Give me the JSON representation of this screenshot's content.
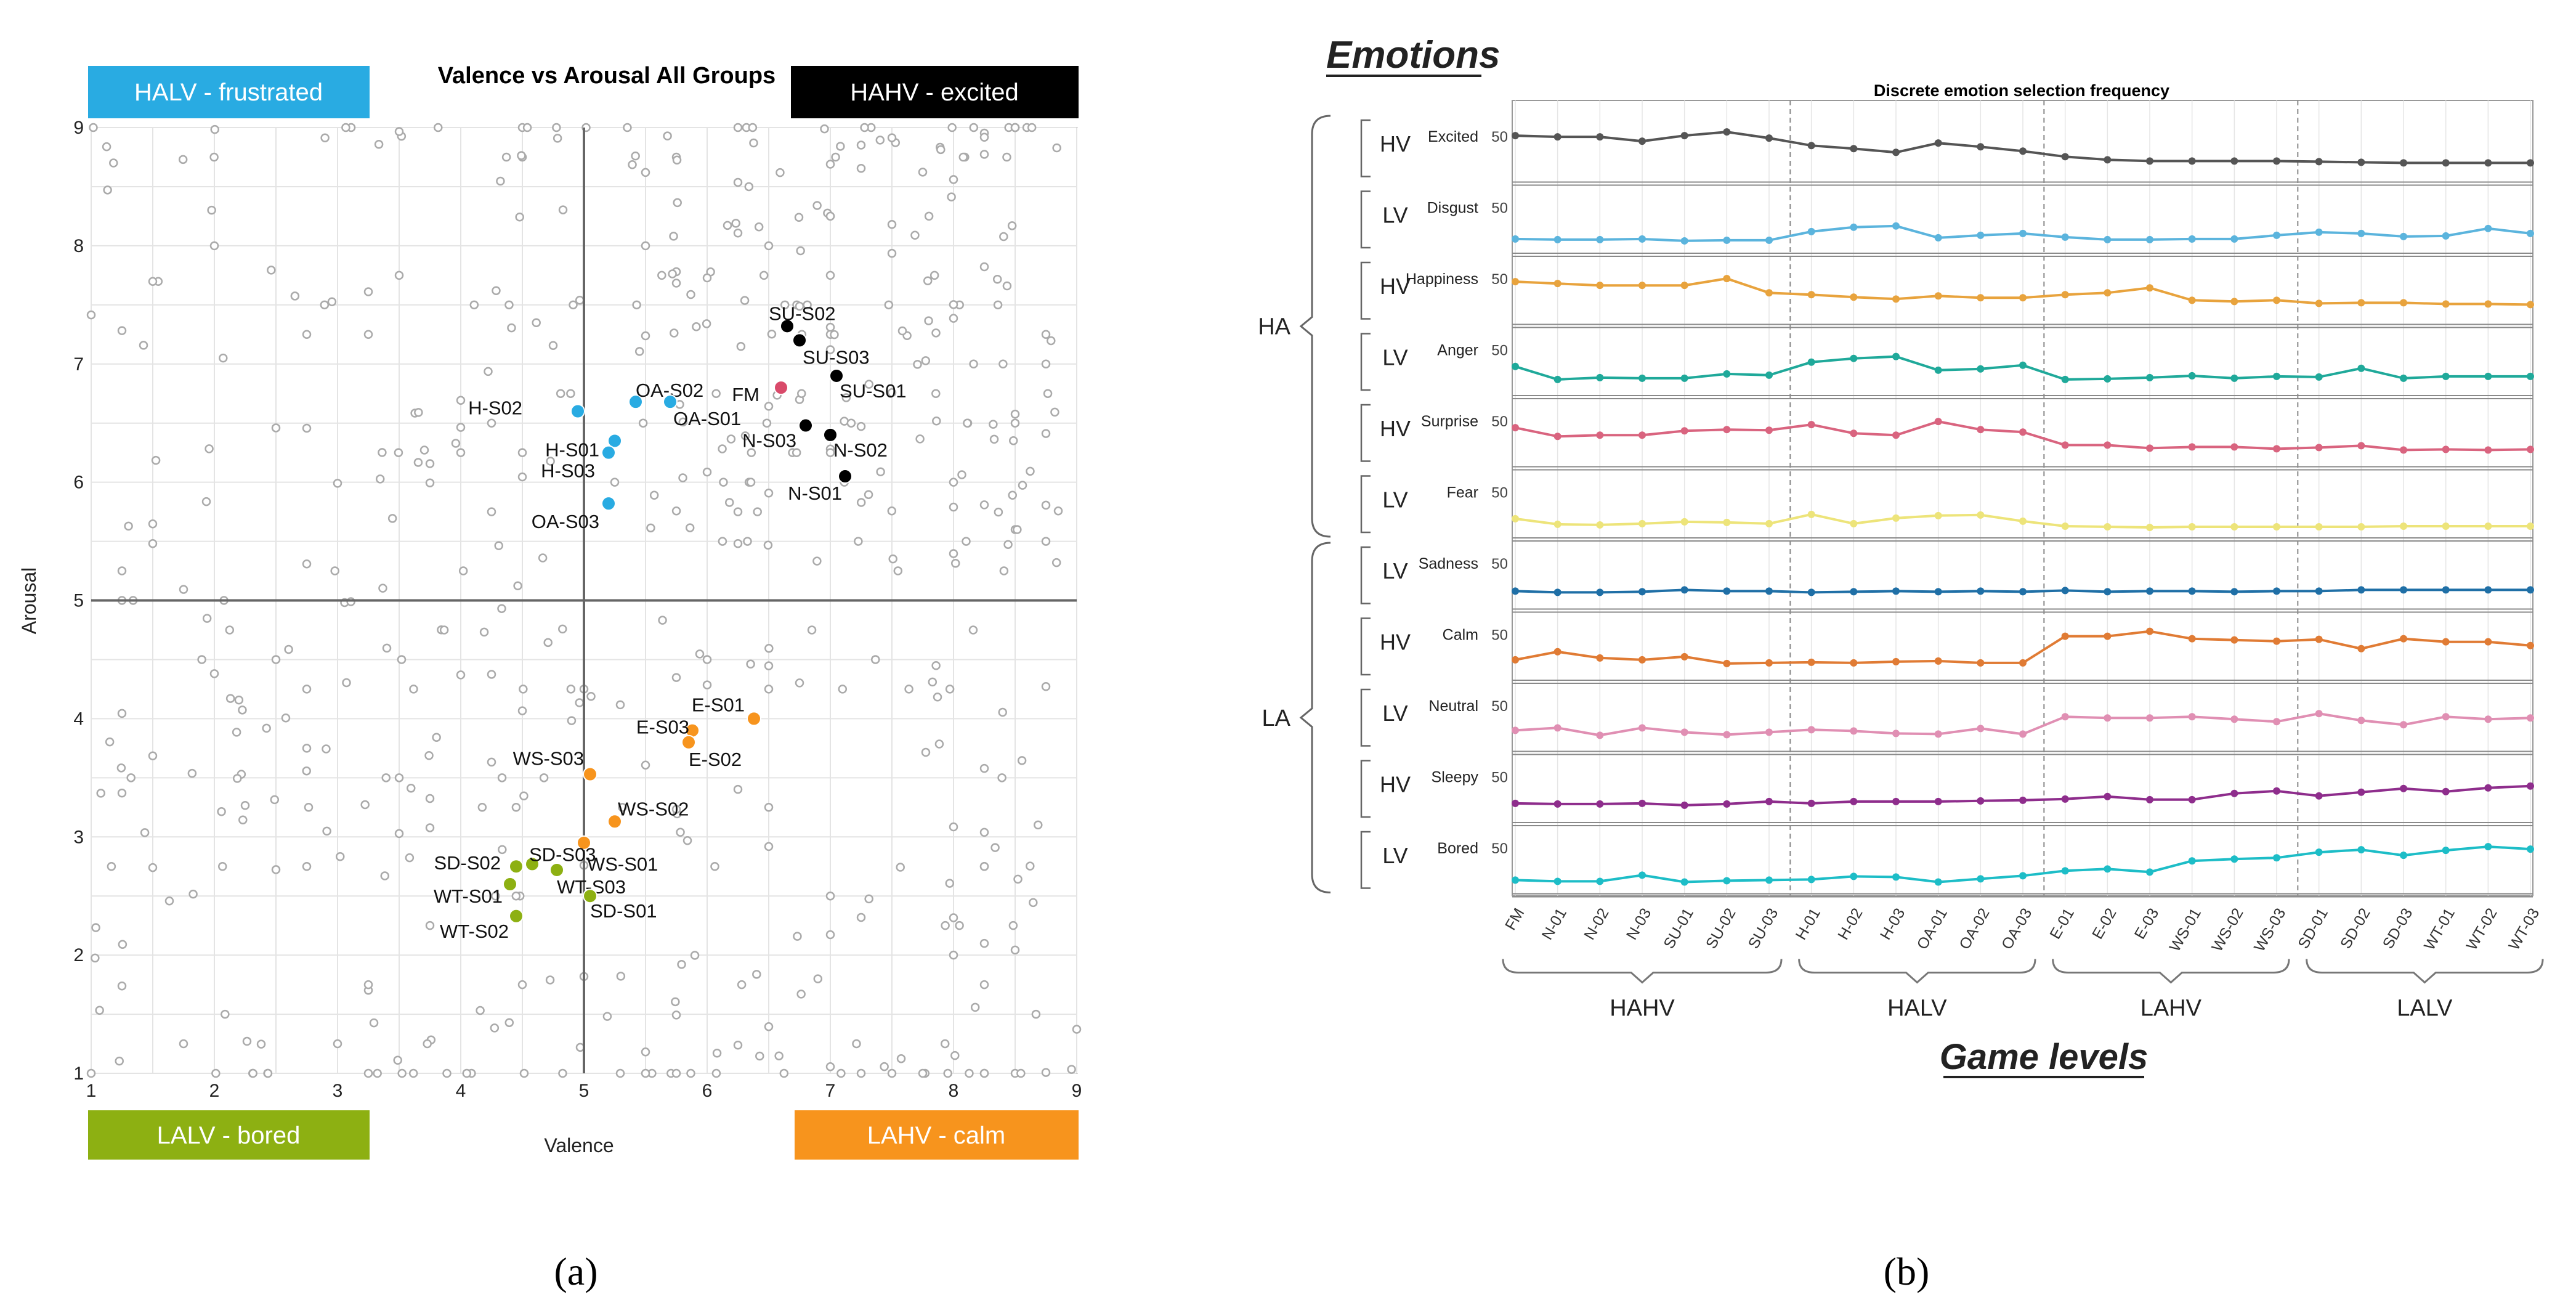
{
  "colors": {
    "halv": "#29ABE2",
    "hahv": "#000000",
    "lalv": "#8DB012",
    "lahv": "#F7941D",
    "fm": "#D94A6A",
    "grey": "#AAAAAA"
  },
  "panel_a": {
    "caption": "(a)",
    "quadrant_labels": {
      "halv": "HALV - frustrated",
      "hahv": "HAHV - excited",
      "lalv": "LALV - bored",
      "lahv": "LAHV - calm"
    }
  },
  "panel_b": {
    "caption": "(b)",
    "header": "Emotions",
    "footer": "Game levels",
    "ha_label": "HA",
    "la_label": "LA",
    "group_labels": [
      "HAHV",
      "HALV",
      "LAHV",
      "LALV"
    ]
  },
  "chart_data": [
    {
      "type": "scatter",
      "title": "Valence vs Arousal All Groups",
      "xlabel": "Valence",
      "ylabel": "Arousal",
      "xlim": [
        1,
        9
      ],
      "ylim": [
        1,
        9
      ],
      "x_ticks": [
        "1",
        "2",
        "3",
        "4",
        "5",
        "6",
        "7",
        "8",
        "9"
      ],
      "y_ticks": [
        "1",
        "2",
        "3",
        "4",
        "5",
        "6",
        "7",
        "8",
        "9"
      ],
      "grid": true,
      "points": [
        {
          "label": "H-S02",
          "x": 4.95,
          "y": 6.6,
          "group": "halv"
        },
        {
          "label": "H-S01",
          "x": 5.25,
          "y": 6.35,
          "group": "halv"
        },
        {
          "label": "H-S03",
          "x": 5.2,
          "y": 6.25,
          "group": "halv"
        },
        {
          "label": "OA-S03",
          "x": 5.2,
          "y": 5.82,
          "group": "halv"
        },
        {
          "label": "OA-S02",
          "x": 5.42,
          "y": 6.68,
          "group": "halv"
        },
        {
          "label": "OA-S01",
          "x": 5.7,
          "y": 6.68,
          "group": "halv"
        },
        {
          "label": "FM",
          "x": 6.6,
          "y": 6.8,
          "group": "fm"
        },
        {
          "label": "SU-S02",
          "x": 6.65,
          "y": 7.32,
          "group": "hahv"
        },
        {
          "label": "SU-S03",
          "x": 6.75,
          "y": 7.2,
          "group": "hahv"
        },
        {
          "label": "SU-S01",
          "x": 7.05,
          "y": 6.9,
          "group": "hahv"
        },
        {
          "label": "N-S03",
          "x": 6.8,
          "y": 6.48,
          "group": "hahv"
        },
        {
          "label": "N-S02",
          "x": 7.0,
          "y": 6.4,
          "group": "hahv"
        },
        {
          "label": "N-S01",
          "x": 7.12,
          "y": 6.05,
          "group": "hahv"
        },
        {
          "label": "E-S01",
          "x": 6.38,
          "y": 4.0,
          "group": "lahv"
        },
        {
          "label": "E-S03",
          "x": 5.88,
          "y": 3.9,
          "group": "lahv"
        },
        {
          "label": "E-S02",
          "x": 5.85,
          "y": 3.8,
          "group": "lahv"
        },
        {
          "label": "WS-S03",
          "x": 5.05,
          "y": 3.53,
          "group": "lahv"
        },
        {
          "label": "WS-S02",
          "x": 5.25,
          "y": 3.13,
          "group": "lahv"
        },
        {
          "label": "WS-S01",
          "x": 5.0,
          "y": 2.95,
          "group": "lahv"
        },
        {
          "label": "SD-S02",
          "x": 4.45,
          "y": 2.75,
          "group": "lalv"
        },
        {
          "label": "SD-S03",
          "x": 4.58,
          "y": 2.77,
          "group": "lalv"
        },
        {
          "label": "WT-S03",
          "x": 4.78,
          "y": 2.72,
          "group": "lalv"
        },
        {
          "label": "WT-S01",
          "x": 4.4,
          "y": 2.6,
          "group": "lalv"
        },
        {
          "label": "SD-S01",
          "x": 5.05,
          "y": 2.5,
          "group": "lalv"
        },
        {
          "label": "WT-S02",
          "x": 4.45,
          "y": 2.33,
          "group": "lalv"
        }
      ]
    },
    {
      "type": "line",
      "title": "Discrete emotion selection frequency",
      "xlabel": "Game levels",
      "categories": [
        "FM",
        "N-01",
        "N-02",
        "N-03",
        "SU-01",
        "SU-02",
        "SU-03",
        "H-01",
        "H-02",
        "H-03",
        "OA-01",
        "OA-02",
        "OA-03",
        "E-01",
        "E-02",
        "E-03",
        "WS-01",
        "WS-02",
        "WS-03",
        "SD-01",
        "SD-02",
        "SD-03",
        "WT-01",
        "WT-02",
        "WT-03"
      ],
      "groups": [
        {
          "name": "HAHV",
          "from": 0,
          "to": 6
        },
        {
          "name": "HALV",
          "from": 7,
          "to": 12
        },
        {
          "name": "LAHV",
          "from": 13,
          "to": 18
        },
        {
          "name": "LALV",
          "from": 19,
          "to": 24
        }
      ],
      "arousal_groups": [
        {
          "label": "HA",
          "rows": [
            0,
            5
          ]
        },
        {
          "label": "LA",
          "rows": [
            6,
            10
          ]
        }
      ],
      "y_tick": "50",
      "ylim": [
        0,
        100
      ],
      "series": [
        {
          "name": "Excited",
          "valence": "HV",
          "color": "#555555",
          "values": [
            64,
            62,
            62,
            55,
            64,
            70,
            60,
            48,
            43,
            37,
            52,
            46,
            39,
            30,
            25,
            23,
            23,
            23,
            23,
            22,
            21,
            20,
            20,
            20,
            20
          ]
        },
        {
          "name": "Disgust",
          "valence": "LV",
          "color": "#5BB4DD",
          "values": [
            12,
            11,
            11,
            12,
            9,
            10,
            10,
            24,
            31,
            33,
            14,
            18,
            21,
            15,
            11,
            11,
            12,
            12,
            18,
            23,
            21,
            16,
            17,
            29,
            21
          ]
        },
        {
          "name": "Happiness",
          "valence": "HV",
          "color": "#E8A33D",
          "values": [
            58,
            55,
            52,
            52,
            52,
            63,
            40,
            37,
            33,
            30,
            35,
            32,
            32,
            37,
            40,
            48,
            28,
            26,
            28,
            23,
            24,
            24,
            22,
            22,
            21
          ]
        },
        {
          "name": "Anger",
          "valence": "LV",
          "color": "#1FA99A",
          "values": [
            36,
            15,
            18,
            17,
            17,
            24,
            22,
            43,
            49,
            52,
            30,
            32,
            38,
            15,
            16,
            18,
            21,
            17,
            20,
            19,
            33,
            17,
            20,
            20,
            20
          ]
        },
        {
          "name": "Surprise",
          "valence": "HV",
          "color": "#D9647F",
          "values": [
            52,
            38,
            40,
            40,
            47,
            49,
            48,
            57,
            43,
            40,
            62,
            49,
            45,
            24,
            24,
            19,
            21,
            21,
            18,
            20,
            23,
            16,
            17,
            16,
            17
          ]
        },
        {
          "name": "Fear",
          "valence": "LV",
          "color": "#EDE47A",
          "values": [
            20,
            11,
            10,
            12,
            15,
            14,
            12,
            27,
            12,
            21,
            25,
            26,
            16,
            8,
            7,
            6,
            7,
            7,
            7,
            7,
            7,
            8,
            8,
            8,
            8
          ]
        },
        {
          "name": "Sadness",
          "valence": "LV",
          "color": "#1F6FA6",
          "values": [
            18,
            16,
            16,
            17,
            20,
            18,
            18,
            16,
            17,
            18,
            17,
            18,
            17,
            19,
            17,
            18,
            18,
            17,
            18,
            18,
            20,
            20,
            20,
            20,
            20
          ]
        },
        {
          "name": "Calm",
          "valence": "HV",
          "color": "#E07B34",
          "values": [
            22,
            35,
            25,
            22,
            27,
            16,
            17,
            18,
            17,
            19,
            20,
            17,
            17,
            60,
            60,
            68,
            56,
            54,
            52,
            55,
            40,
            56,
            51,
            51,
            45
          ]
        },
        {
          "name": "Neutral",
          "valence": "LV",
          "color": "#E08FB3",
          "values": [
            23,
            27,
            15,
            27,
            20,
            16,
            20,
            24,
            22,
            18,
            17,
            26,
            17,
            45,
            43,
            43,
            45,
            41,
            37,
            50,
            39,
            32,
            45,
            41,
            43
          ]
        },
        {
          "name": "Sleepy",
          "valence": "HV",
          "color": "#8E2D8C",
          "values": [
            20,
            19,
            19,
            20,
            17,
            19,
            23,
            20,
            23,
            23,
            23,
            24,
            25,
            27,
            31,
            26,
            26,
            36,
            40,
            32,
            38,
            44,
            39,
            45,
            48
          ]
        },
        {
          "name": "Bored",
          "valence": "LV",
          "color": "#1DBDC7",
          "values": [
            11,
            9,
            9,
            19,
            8,
            10,
            11,
            12,
            17,
            16,
            8,
            13,
            18,
            26,
            29,
            24,
            42,
            45,
            47,
            56,
            60,
            51,
            59,
            65,
            61
          ]
        }
      ]
    }
  ]
}
